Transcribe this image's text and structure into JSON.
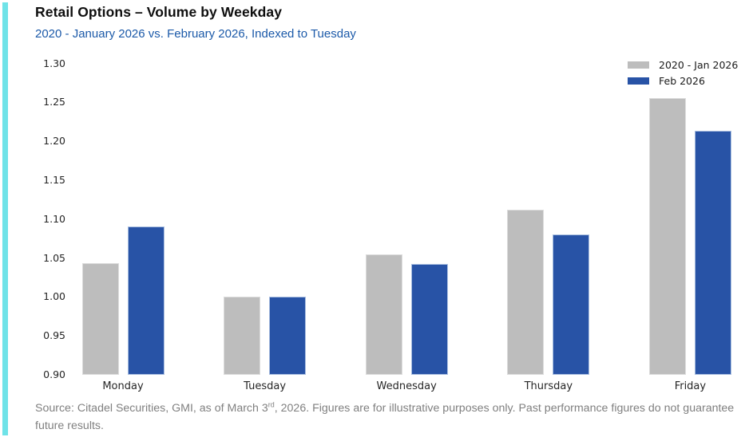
{
  "header": {
    "title": "Retail Options – Volume by Weekday",
    "subtitle": "2020 - January 2026 vs. February 2026, Indexed to Tuesday"
  },
  "chart_data": {
    "type": "bar",
    "title": "Retail Options – Volume by Weekday",
    "subtitle": "2020 - January 2026 vs. February 2026, Indexed to Tuesday",
    "categories": [
      "Monday",
      "Tuesday",
      "Wednesday",
      "Thursday",
      "Friday"
    ],
    "series": [
      {
        "name": "2020 - Jan 2026",
        "color": "#bdbdbd",
        "edge": "#dcdcdc",
        "values": [
          1.043,
          1.0,
          1.055,
          1.112,
          1.255
        ]
      },
      {
        "name": "Feb 2026",
        "color": "#2853a6",
        "edge": "#aabfe0",
        "values": [
          1.091,
          1.0,
          1.042,
          1.08,
          1.213
        ]
      }
    ],
    "xlabel": "",
    "ylabel": "",
    "ylim": [
      0.9,
      1.3
    ],
    "ytick_step": 0.05,
    "ytick_labels": [
      "0.90",
      "0.95",
      "1.00",
      "1.05",
      "1.10",
      "1.15",
      "1.20",
      "1.25",
      "1.30"
    ],
    "grid": false,
    "legend_position": "top-right"
  },
  "footer": {
    "source_prefix": "Source: Citadel Securities, GMI, as of March 3",
    "source_sup": "rd",
    "source_suffix": ", 2026. Figures are for illustrative purposes only. Past performance figures do not guarantee future results."
  },
  "colors": {
    "accent_teal": "#6fe3e8",
    "subtitle_blue": "#1c5aa9",
    "bar_gray": "#bdbdbd",
    "bar_blue": "#2853a6",
    "footer_gray": "#808080"
  }
}
